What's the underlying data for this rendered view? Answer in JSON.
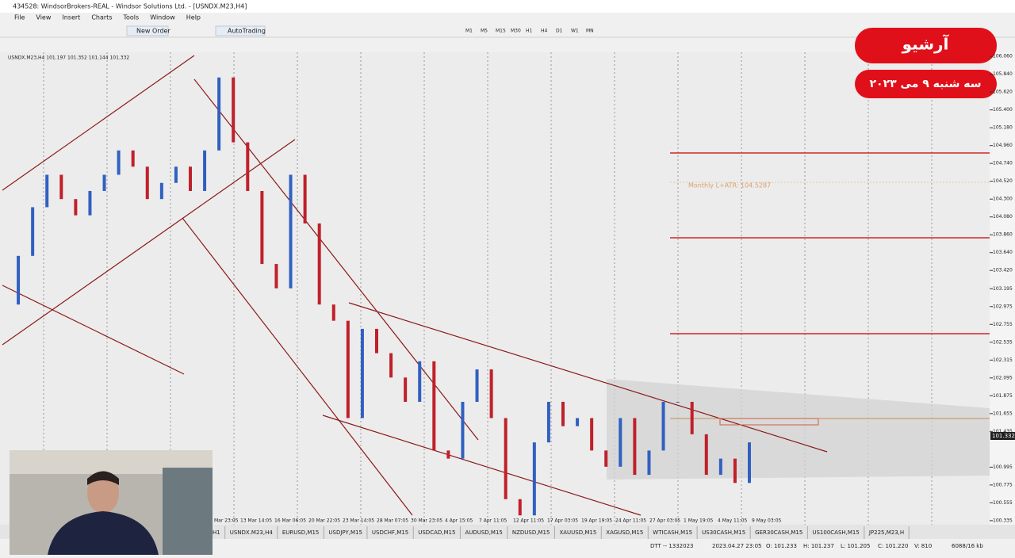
{
  "window": {
    "title": "434528: WindsorBrokers-REAL - Windsor Solutions Ltd. - [USNDX.M23,H4]"
  },
  "menu": [
    "File",
    "View",
    "Insert",
    "Charts",
    "Tools",
    "Window",
    "Help"
  ],
  "toolbar": {
    "new_order": "New Order",
    "auto_trading": "AutoTrading",
    "timeframes": [
      "M1",
      "M5",
      "M15",
      "M30",
      "H1",
      "H4",
      "D1",
      "W1",
      "MN"
    ]
  },
  "chart": {
    "info": "USNDX.M23,H4  101.197 101.352 101.144 101.332",
    "current_price": "101.332",
    "annotation": "Monthly L+ATR: 104.5287",
    "closes": [
      103.0,
      103.6,
      104.2,
      104.6,
      104.3,
      104.1,
      104.4,
      104.6,
      104.9,
      104.7,
      104.3,
      104.5,
      104.7,
      104.4,
      104.9,
      105.8,
      105.0,
      104.4,
      103.5,
      103.2,
      104.6,
      104.0,
      103.0,
      102.8,
      101.6,
      102.7,
      102.4,
      102.1,
      101.8,
      102.3,
      101.2,
      101.1,
      101.8,
      102.2,
      101.6,
      100.6,
      100.4,
      101.3,
      101.8,
      101.5,
      101.6,
      101.2,
      101.0,
      101.6,
      100.9,
      101.2,
      101.8,
      101.8,
      101.4,
      100.9,
      101.1,
      100.8,
      101.3
    ],
    "ylim": [
      100.285,
      106.11
    ],
    "yticks": [
      {
        "value": 106.06,
        "label": "106.060"
      },
      {
        "value": 105.84,
        "label": "105.840"
      },
      {
        "value": 105.62,
        "label": "105.620"
      },
      {
        "value": 105.4,
        "label": "105.400"
      },
      {
        "value": 105.18,
        "label": "105.180"
      },
      {
        "value": 104.96,
        "label": "104.960"
      },
      {
        "value": 104.74,
        "label": "104.740"
      },
      {
        "value": 104.52,
        "label": "104.520"
      },
      {
        "value": 104.3,
        "label": "104.300"
      },
      {
        "value": 104.08,
        "label": "104.080"
      },
      {
        "value": 103.86,
        "label": "103.860"
      },
      {
        "value": 103.64,
        "label": "103.640"
      },
      {
        "value": 103.42,
        "label": "103.420"
      },
      {
        "value": 103.195,
        "label": "103.195"
      },
      {
        "value": 102.975,
        "label": "102.975"
      },
      {
        "value": 102.755,
        "label": "102.755"
      },
      {
        "value": 102.535,
        "label": "102.535"
      },
      {
        "value": 102.315,
        "label": "102.315"
      },
      {
        "value": 102.095,
        "label": "102.095"
      },
      {
        "value": 101.875,
        "label": "101.875"
      },
      {
        "value": 101.655,
        "label": "101.655"
      },
      {
        "value": 101.435,
        "label": "101.435"
      },
      {
        "value": 100.995,
        "label": "100.995"
      },
      {
        "value": 100.775,
        "label": "100.775"
      },
      {
        "value": 100.555,
        "label": "100.555"
      },
      {
        "value": 100.335,
        "label": "100.335"
      }
    ],
    "dates": [
      "Mar 23:05",
      "13 Mar 14:05",
      "16 Mar 06:05",
      "20 Mar 22:05",
      "23 Mar 14:05",
      "28 Mar 07:05",
      "30 Mar 23:05",
      "4 Apr 15:05",
      "7 Apr 11:05",
      "12 Apr 11:05",
      "17 Apr 03:05",
      "19 Apr 19:05",
      "24 Apr 11:05",
      "27 Apr 03:05",
      "1 May 19:05",
      "4 May 11:05",
      "9 May 03:05"
    ]
  },
  "overlay": {
    "title": "آرشیو",
    "date": "سه شنبه ۹ می ۲۰۲۳"
  },
  "tabs": [
    "H1",
    "USNDX.M23,H4",
    "EURUSD,M15",
    "USDJPY,M15",
    "USDCHF,M15",
    "USDCAD,M15",
    "AUDUSD,M15",
    "NZDUSD,M15",
    "XAUUSD,M15",
    "XAGUSD,M15",
    "WTICASH,M15",
    "US30CASH,M15",
    "GER30CASH,M15",
    "US100CASH,M15",
    "JP225,M23,H"
  ],
  "status": [
    "DTT -- 1332023",
    "2023.04.27 23:05",
    "O: 101.233",
    "H: 101.237",
    "L: 101.205",
    "C: 101.220",
    "V: 810",
    "6088/16 kb"
  ]
}
